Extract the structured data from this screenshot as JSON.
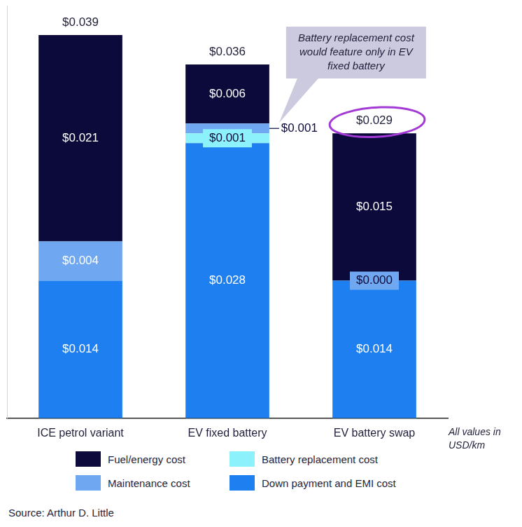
{
  "chart_data": {
    "type": "bar",
    "stacked": true,
    "categories": [
      "ICE petrol variant",
      "EV fixed battery",
      "EV battery swap"
    ],
    "series": [
      {
        "name": "Down payment and EMI cost",
        "color": "#1d7ff0",
        "values": [
          0.014,
          0.028,
          0.014
        ],
        "value_labels": [
          "$0.014",
          "$0.028",
          "$0.014"
        ]
      },
      {
        "name": "Battery replacement cost",
        "color": "#8df1fb",
        "values": [
          null,
          0.001,
          null
        ],
        "value_labels": [
          null,
          "$0.001",
          null
        ]
      },
      {
        "name": "Maintenance cost",
        "color": "#6fa8f0",
        "values": [
          0.004,
          0.001,
          0.0
        ],
        "value_labels": [
          "$0.004",
          "$0.001",
          "$0.000"
        ]
      },
      {
        "name": "Fuel/energy cost",
        "color": "#0b0a3a",
        "values": [
          0.021,
          0.006,
          0.015
        ],
        "value_labels": [
          "$0.021",
          "$0.006",
          "$0.015"
        ]
      }
    ],
    "totals": [
      0.039,
      0.036,
      0.029
    ],
    "total_labels": [
      "$0.039",
      "$0.036",
      "$0.029"
    ],
    "data_labels": true,
    "ylim": [
      0,
      0.042
    ],
    "grid": false,
    "tick_labels": "x",
    "legend": "bottom",
    "annotation": "Battery replacement cost would feature only in EV fixed battery",
    "note": "All values in USD/km",
    "source": "Source: Arthur D. Little"
  }
}
